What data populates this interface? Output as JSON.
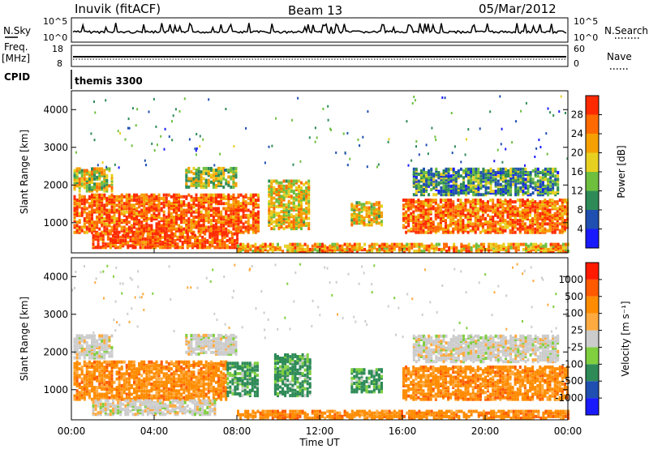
{
  "header": {
    "station": "Inuvik (fitACF)",
    "beam": "Beam 13",
    "date": "05/Mar/2012"
  },
  "strip_panels": {
    "nsky_label": "N.Sky",
    "nsky_ticks": [
      "10^5",
      "10^0"
    ],
    "nsearch_label": "N.Search",
    "nsearch_ticks": [
      "10^5",
      "10^0"
    ],
    "freq_label": "Freq.",
    "freq_unit": "[MHz]",
    "freq_ticks": [
      "18",
      "8"
    ],
    "nave_label": "Nave",
    "nave_ticks": [
      "60",
      "0"
    ],
    "cpid_label": "CPID",
    "cpid_value": "themis 3300"
  },
  "chart_data": [
    {
      "type": "heatmap",
      "title": "",
      "ylabel": "Slant Range [km]",
      "xlabel": "",
      "ylim": [
        200,
        4500
      ],
      "xlim_hours": [
        0,
        24
      ],
      "yticks": [
        "1000",
        "2000",
        "3000",
        "4000"
      ],
      "colorbar": {
        "label": "Power [dB]",
        "ticks": [
          "28",
          "24",
          "20",
          "16",
          "12",
          "8",
          "4"
        ],
        "colors": [
          "#1a1aff",
          "#1f4fb0",
          "#2e8b57",
          "#6fbf3f",
          "#e8d020",
          "#f5a000",
          "#ff6a00",
          "#ff2a00"
        ]
      },
      "echo_regions": [
        {
          "t0": 0.1,
          "t1": 2.0,
          "r0": 1800,
          "r1": 2400,
          "level": 0.55
        },
        {
          "t0": 0.1,
          "t1": 9.0,
          "r0": 700,
          "r1": 1700,
          "level": 0.85
        },
        {
          "t0": 1.0,
          "t1": 8.0,
          "r0": 300,
          "r1": 700,
          "level": 0.9
        },
        {
          "t0": 5.5,
          "t1": 8.0,
          "r0": 1900,
          "r1": 2400,
          "level": 0.5
        },
        {
          "t0": 9.5,
          "t1": 11.5,
          "r0": 800,
          "r1": 2100,
          "level": 0.6
        },
        {
          "t0": 13.5,
          "t1": 15.0,
          "r0": 900,
          "r1": 1500,
          "level": 0.6
        },
        {
          "t0": 16.0,
          "t1": 24.0,
          "r0": 700,
          "r1": 1600,
          "level": 0.8
        },
        {
          "t0": 16.5,
          "t1": 23.5,
          "r0": 1700,
          "r1": 2400,
          "level": 0.35
        },
        {
          "t0": 8.0,
          "t1": 24.0,
          "r0": 200,
          "r1": 400,
          "level": 0.7
        }
      ]
    },
    {
      "type": "heatmap",
      "title": "",
      "ylabel": "Slant Range [km]",
      "xlabel": "Time UT",
      "ylim": [
        200,
        4500
      ],
      "xlim_hours": [
        0,
        24
      ],
      "yticks": [
        "1000",
        "2000",
        "3000",
        "4000"
      ],
      "xticks": [
        "00:00",
        "04:00",
        "08:00",
        "12:00",
        "16:00",
        "20:00",
        "00:00"
      ],
      "colorbar": {
        "label": "Velocity [m s⁻¹]",
        "ticks": [
          "1000",
          "500",
          "100",
          "25",
          "-25",
          "-100",
          "-500",
          "-1000"
        ],
        "colors": [
          "#ff1a00",
          "#ff5a00",
          "#ff8c00",
          "#ffaa40",
          "#cccccc",
          "#7fcf3f",
          "#2e8b57",
          "#1f4fb0",
          "#1a1aff"
        ]
      },
      "echo_regions": [
        {
          "t0": 0.1,
          "t1": 2.0,
          "r0": 1800,
          "r1": 2400,
          "kind": "grey"
        },
        {
          "t0": 0.1,
          "t1": 7.5,
          "r0": 700,
          "r1": 1700,
          "kind": "orange"
        },
        {
          "t0": 7.5,
          "t1": 9.0,
          "r0": 800,
          "r1": 1700,
          "kind": "green"
        },
        {
          "t0": 1.0,
          "t1": 7.0,
          "r0": 300,
          "r1": 700,
          "kind": "grey"
        },
        {
          "t0": 5.5,
          "t1": 8.0,
          "r0": 1900,
          "r1": 2400,
          "kind": "grey"
        },
        {
          "t0": 9.8,
          "t1": 11.5,
          "r0": 800,
          "r1": 1900,
          "kind": "green"
        },
        {
          "t0": 13.5,
          "t1": 15.0,
          "r0": 900,
          "r1": 1500,
          "kind": "green"
        },
        {
          "t0": 16.0,
          "t1": 24.0,
          "r0": 700,
          "r1": 1600,
          "kind": "orange"
        },
        {
          "t0": 16.5,
          "t1": 23.5,
          "r0": 1700,
          "r1": 2400,
          "kind": "grey"
        },
        {
          "t0": 8.0,
          "t1": 24.0,
          "r0": 200,
          "r1": 400,
          "kind": "orange"
        }
      ]
    }
  ]
}
